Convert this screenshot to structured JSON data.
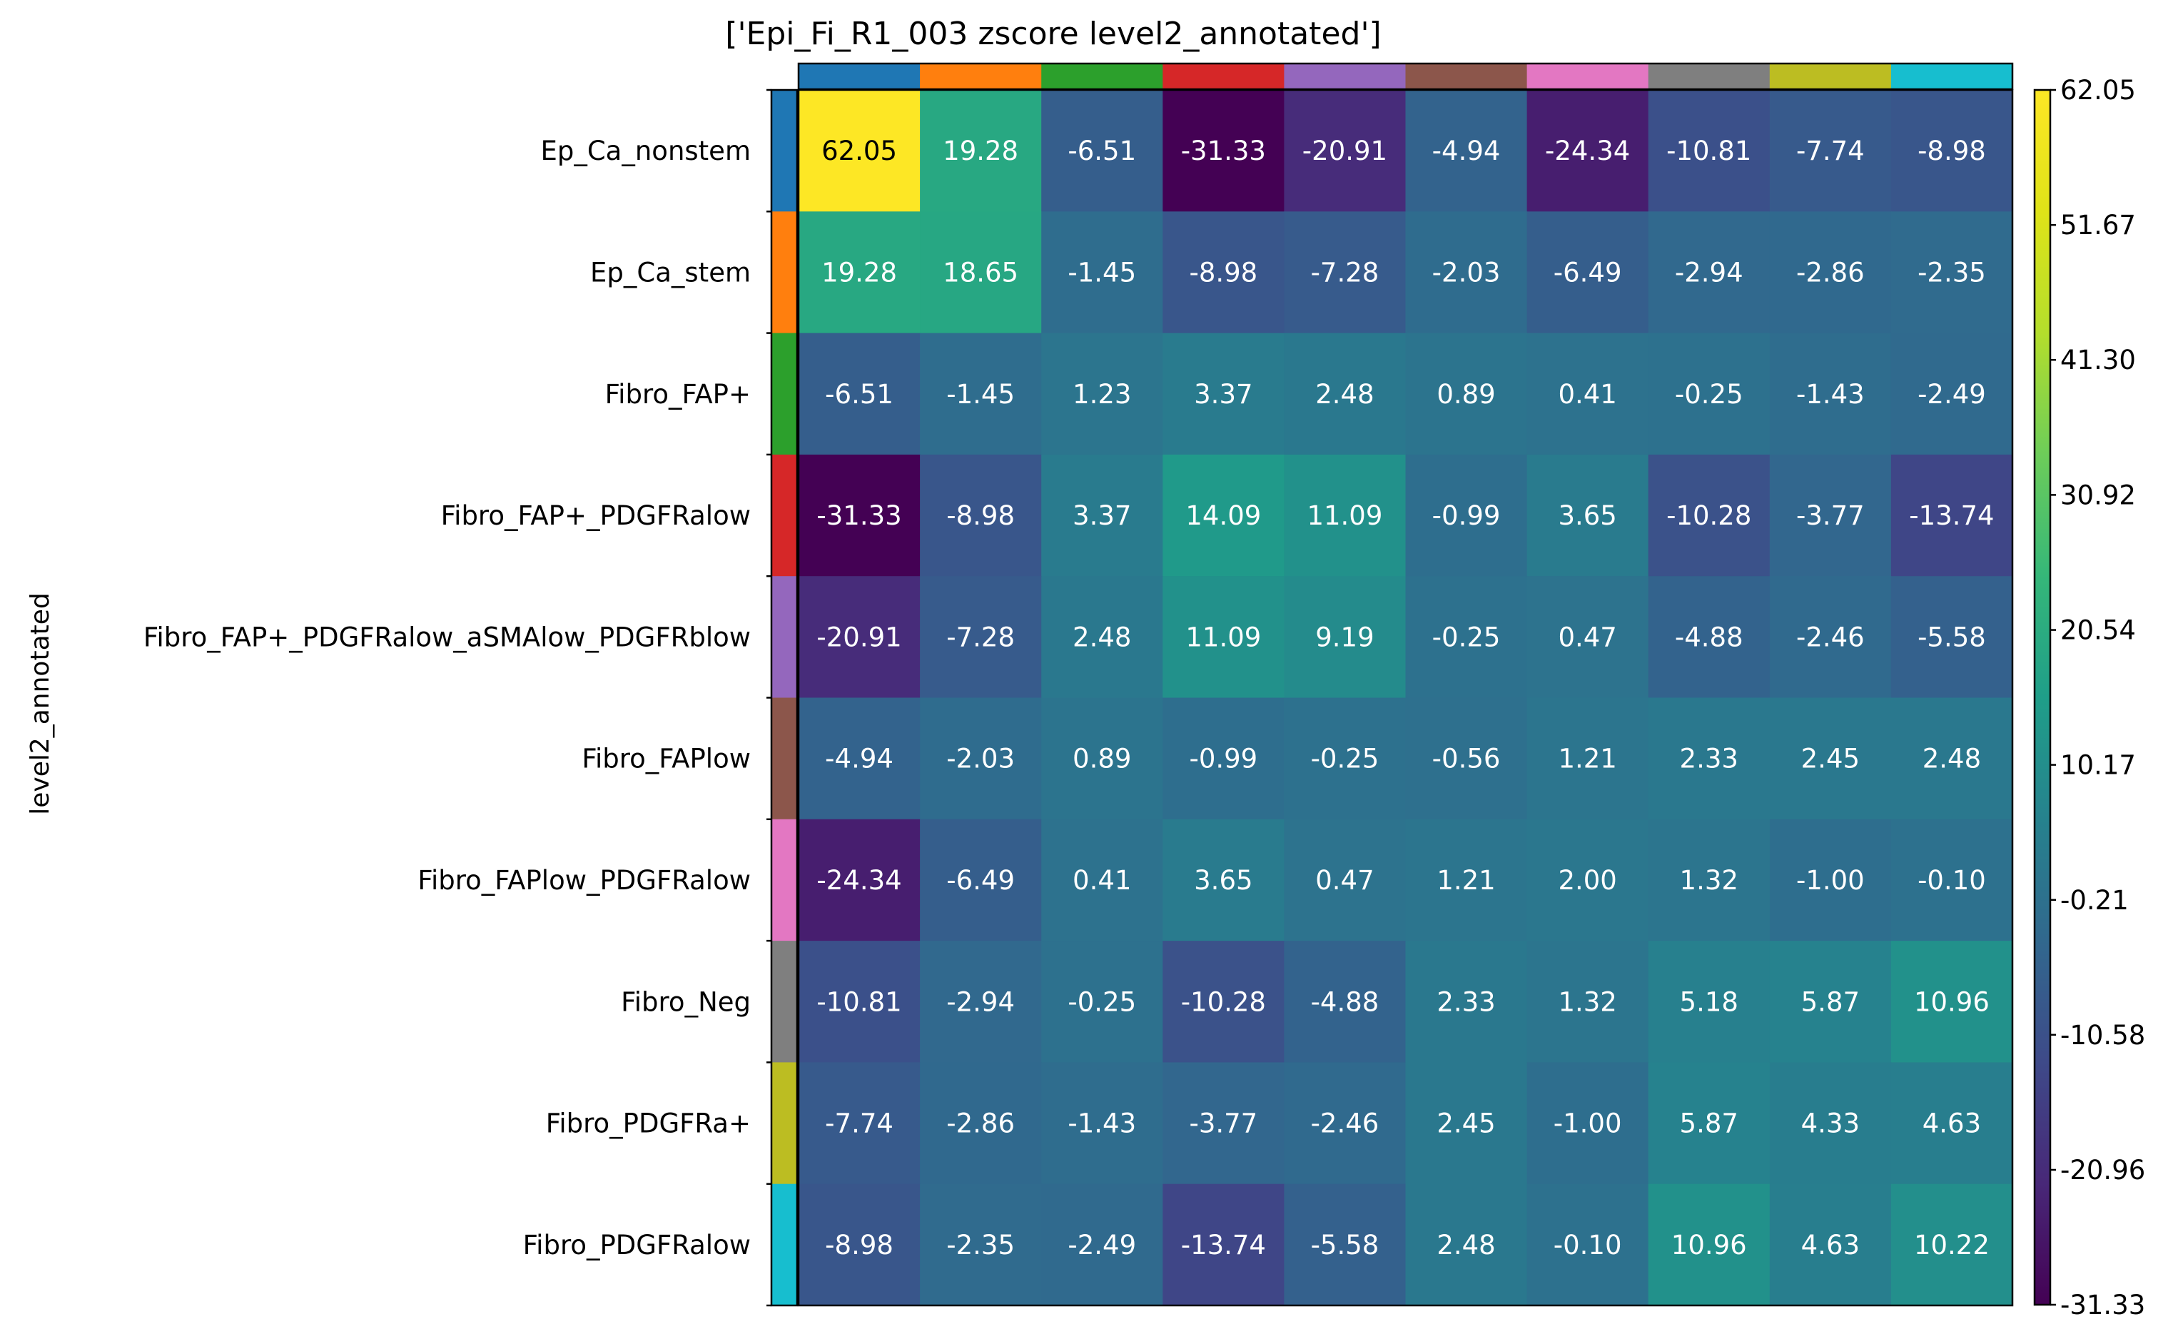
{
  "chart_data": {
    "type": "heatmap",
    "title": "['Epi_Fi_R1_003 zscore level2_annotated']",
    "ylabel": "level2_annotated",
    "xlabel": "",
    "row_labels": [
      "Ep_Ca_nonstem",
      "Ep_Ca_stem",
      "Fibro_FAP+",
      "Fibro_FAP+_PDGFRalow",
      "Fibro_FAP+_PDGFRalow_aSMAlow_PDGFRblow",
      "Fibro_FAPlow",
      "Fibro_FAPlow_PDGFRalow",
      "Fibro_Neg",
      "Fibro_PDGFRa+",
      "Fibro_PDGFRalow"
    ],
    "values": [
      [
        62.05,
        19.28,
        -6.51,
        -31.33,
        -20.91,
        -4.94,
        -24.34,
        -10.81,
        -7.74,
        -8.98
      ],
      [
        19.28,
        18.65,
        -1.45,
        -8.98,
        -7.28,
        -2.03,
        -6.49,
        -2.94,
        -2.86,
        -2.35
      ],
      [
        -6.51,
        -1.45,
        1.23,
        3.37,
        2.48,
        0.89,
        0.41,
        -0.25,
        -1.43,
        -2.49
      ],
      [
        -31.33,
        -8.98,
        3.37,
        14.09,
        11.09,
        -0.99,
        3.65,
        -10.28,
        -3.77,
        -13.74
      ],
      [
        -20.91,
        -7.28,
        2.48,
        11.09,
        9.19,
        -0.25,
        0.47,
        -4.88,
        -2.46,
        -5.58
      ],
      [
        -4.94,
        -2.03,
        0.89,
        -0.99,
        -0.25,
        -0.56,
        1.21,
        2.33,
        2.45,
        2.48
      ],
      [
        -24.34,
        -6.49,
        0.41,
        3.65,
        0.47,
        1.21,
        2.0,
        1.32,
        -1.0,
        -0.1
      ],
      [
        -10.81,
        -2.94,
        -0.25,
        -10.28,
        -4.88,
        2.33,
        1.32,
        5.18,
        5.87,
        10.96
      ],
      [
        -7.74,
        -2.86,
        -1.43,
        -3.77,
        -2.46,
        2.45,
        -1.0,
        5.87,
        4.33,
        4.63
      ],
      [
        -8.98,
        -2.35,
        -2.49,
        -13.74,
        -5.58,
        2.48,
        -0.1,
        10.96,
        4.63,
        10.22
      ]
    ],
    "category_colors": [
      "#1f77b4",
      "#ff7f0e",
      "#2ca02c",
      "#d62728",
      "#9467bd",
      "#8c564b",
      "#e377c2",
      "#7f7f7f",
      "#bcbd22",
      "#17becf"
    ],
    "colorscale": "viridis",
    "vmin": -31.33,
    "vmax": 62.05,
    "colorbar_ticks": [
      62.05,
      51.67,
      41.3,
      30.92,
      20.54,
      10.17,
      -0.21,
      -10.58,
      -20.96,
      -31.33
    ],
    "grid": false
  }
}
